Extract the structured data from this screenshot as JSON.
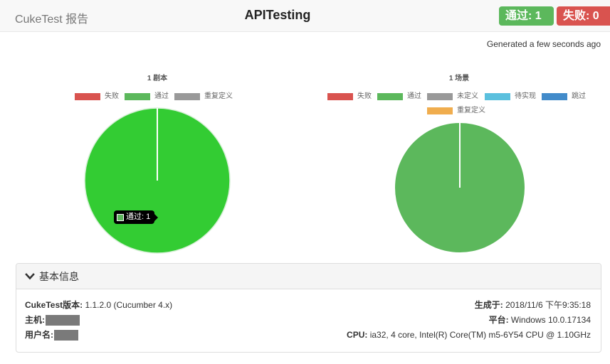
{
  "navbar": {
    "brand": "CukeTest 报告",
    "title": "APITesting",
    "pass_badge": "通过: 1",
    "fail_badge": "失败: 0"
  },
  "generated": "Generated a few seconds ago",
  "colors": {
    "failed": "#d9534f",
    "passed": "#5cb85c",
    "undefined": "#999999",
    "pending": "#5bc0de",
    "skipped": "#428bca",
    "ambiguous": "#f0ad4e",
    "pie_feature_fill": "#33cc33"
  },
  "feature_chart": {
    "title": "1 剧本",
    "legend": [
      {
        "label": "失败",
        "color": "#d9534f"
      },
      {
        "label": "通过",
        "color": "#5cb85c"
      },
      {
        "label": "重复定义",
        "color": "#999999"
      }
    ],
    "slices": [
      {
        "label": "通过",
        "value": 1
      }
    ],
    "tooltip": "通过: 1"
  },
  "scenario_chart": {
    "title": "1 场景",
    "legend": [
      {
        "label": "失败",
        "color": "#d9534f"
      },
      {
        "label": "通过",
        "color": "#5cb85c"
      },
      {
        "label": "未定义",
        "color": "#999999"
      },
      {
        "label": "待实现",
        "color": "#5bc0de"
      },
      {
        "label": "跳过",
        "color": "#428bca"
      },
      {
        "label": "重复定义",
        "color": "#f0ad4e"
      }
    ],
    "slices": [
      {
        "label": "通过",
        "value": 1
      }
    ]
  },
  "info_panel": {
    "title": "基本信息",
    "cuketest_version_label": "CukeTest版本:",
    "cuketest_version": " 1.1.2.0 (Cucumber 4.x)",
    "host_label": "主机:",
    "user_label": "用户名:",
    "generated_label": "生成于:",
    "generated_value": " 2018/11/6 下午9:35:18",
    "platform_label": "平台:",
    "platform_value": " Windows 10.0.17134",
    "cpu_label": "CPU:",
    "cpu_value": " ia32, 4 core, Intel(R) Core(TM) m5-6Y54 CPU @ 1.10GHz"
  }
}
